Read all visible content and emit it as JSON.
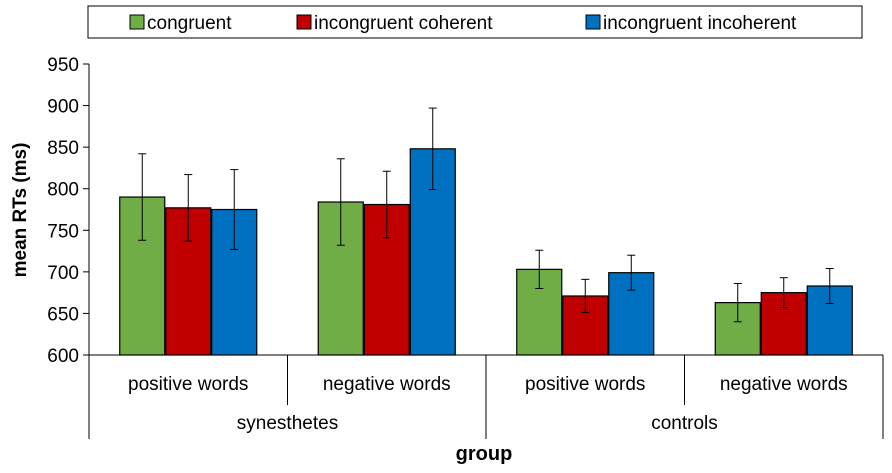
{
  "chart_data": {
    "type": "bar",
    "ylabel": "mean RTs (ms)",
    "xlabel": "group",
    "ylim": [
      600,
      950
    ],
    "yticks": [
      600,
      650,
      700,
      750,
      800,
      850,
      900,
      950
    ],
    "grid": false,
    "legend_position": "top",
    "categories": [
      "positive words",
      "negative words",
      "positive words",
      "negative words"
    ],
    "groups": [
      {
        "label": "synesthetes",
        "categories": [
          0,
          1
        ]
      },
      {
        "label": "controls",
        "categories": [
          2,
          3
        ]
      }
    ],
    "series": [
      {
        "name": "congruent",
        "color": "#70ad47",
        "values": [
          790,
          784,
          703,
          663
        ],
        "errors": [
          52,
          52,
          23,
          23
        ]
      },
      {
        "name": "incongruent coherent",
        "color": "#c00000",
        "values": [
          777,
          781,
          671,
          675
        ],
        "errors": [
          40,
          40,
          20,
          18
        ]
      },
      {
        "name": "incongruent incoherent",
        "color": "#0070c0",
        "values": [
          775,
          848,
          699,
          683
        ],
        "errors": [
          48,
          49,
          21,
          21
        ]
      }
    ]
  }
}
